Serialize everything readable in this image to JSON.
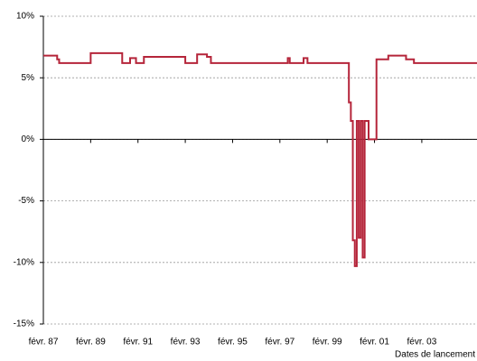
{
  "chart_data": {
    "type": "line",
    "step": "post",
    "x_label": "Dates de lancement",
    "x": [
      "1987-02",
      "1987-09",
      "1987-10",
      "1989-02",
      "1990-06",
      "1990-10",
      "1991-01",
      "1991-05",
      "1993-02",
      "1993-08",
      "1994-01",
      "1994-03",
      "1997-06",
      "1997-07",
      "1998-02",
      "1998-04",
      "2000-01",
      "2000-02",
      "2000-03",
      "2000-04",
      "2000-05",
      "2000-06",
      "2000-07",
      "2000-08",
      "2000-09",
      "2000-11",
      "2001-03",
      "2001-09",
      "2002-06",
      "2002-10",
      "2005-06"
    ],
    "series": [
      {
        "color": "#b5253a",
        "values": [
          6.8,
          6.5,
          6.2,
          7.0,
          6.2,
          6.6,
          6.2,
          6.7,
          6.2,
          6.9,
          6.7,
          6.2,
          6.6,
          6.2,
          6.6,
          6.2,
          3.0,
          1.5,
          -8.2,
          -10.3,
          1.5,
          -8.0,
          1.5,
          -9.6,
          1.5,
          0,
          6.5,
          6.8,
          6.5,
          6.2,
          6.2
        ]
      }
    ],
    "xlim": [
      "1987-02",
      "2005-06"
    ],
    "xticks": [
      {
        "value": "1987-02",
        "label": "févr. 87"
      },
      {
        "value": "1989-02",
        "label": "févr. 89"
      },
      {
        "value": "1991-02",
        "label": "févr. 91"
      },
      {
        "value": "1993-02",
        "label": "févr. 93"
      },
      {
        "value": "1995-02",
        "label": "févr. 95"
      },
      {
        "value": "1997-02",
        "label": "févr. 97"
      },
      {
        "value": "1999-02",
        "label": "févr. 99"
      },
      {
        "value": "2001-02",
        "label": "févr. 01"
      },
      {
        "value": "2003-02",
        "label": "févr. 03"
      }
    ],
    "ylim": [
      -15,
      10
    ],
    "yticks": [
      {
        "value": -15,
        "label": "-15%"
      },
      {
        "value": -10,
        "label": "-10%"
      },
      {
        "value": -5,
        "label": "-5%"
      },
      {
        "value": 0,
        "label": "0%"
      },
      {
        "value": 5,
        "label": "5%"
      },
      {
        "value": 10,
        "label": "10%"
      }
    ],
    "grid": true
  }
}
